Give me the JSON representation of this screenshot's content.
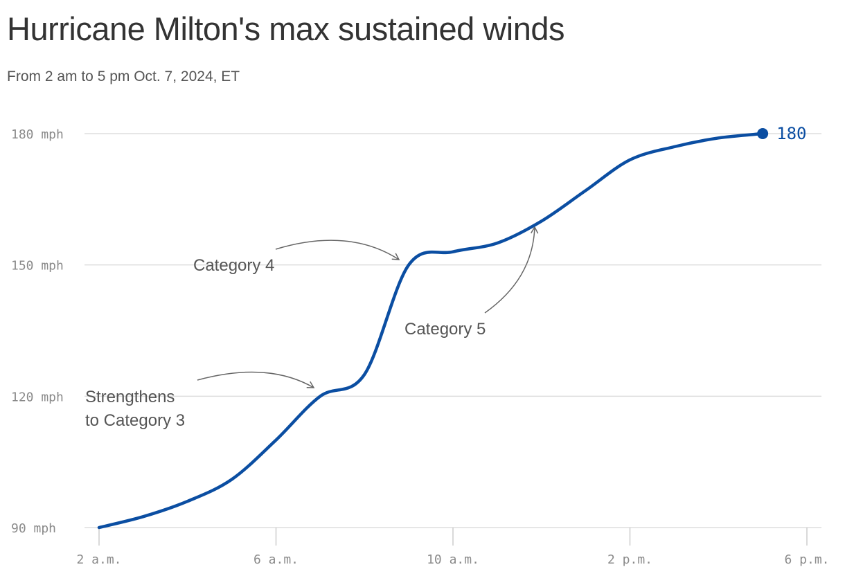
{
  "title": "Hurricane Milton's max sustained winds",
  "subtitle": "From 2 am to 5 pm Oct. 7, 2024, ET",
  "colors": {
    "line": "#0b4ea2",
    "grid": "#dddddd",
    "annotation": "#555555",
    "arrow": "#666666"
  },
  "chart_data": {
    "type": "line",
    "title": "Hurricane Milton's max sustained winds",
    "subtitle": "From 2 am to 5 pm Oct. 7, 2024, ET",
    "xlabel": "",
    "ylabel": "",
    "x_unit": "hour of day (ET)",
    "xlim": [
      2,
      18
    ],
    "ylim": [
      90,
      180
    ],
    "grid": true,
    "x_ticks": [
      {
        "value": 2,
        "label": "2 a.m."
      },
      {
        "value": 6,
        "label": "6 a.m."
      },
      {
        "value": 10,
        "label": "10 a.m."
      },
      {
        "value": 14,
        "label": "2 p.m."
      },
      {
        "value": 18,
        "label": "6 p.m."
      }
    ],
    "y_ticks": [
      {
        "value": 90,
        "label": "90 mph"
      },
      {
        "value": 120,
        "label": "120 mph"
      },
      {
        "value": 150,
        "label": "150 mph"
      },
      {
        "value": 180,
        "label": "180 mph"
      }
    ],
    "series": [
      {
        "x": [
          2,
          3,
          4,
          5,
          6,
          7,
          8,
          9,
          10,
          11,
          12,
          13,
          14,
          15,
          16,
          17
        ],
        "values": [
          90,
          92.5,
          96,
          101,
          110,
          120,
          125,
          150,
          153,
          155,
          160,
          167,
          174,
          177,
          179,
          180
        ]
      }
    ],
    "end_label": "180",
    "annotations": [
      {
        "text": "Strengthens",
        "text2": "to Category 3",
        "x": 7,
        "y": 120
      },
      {
        "text": "Category 4",
        "x": 9,
        "y": 150
      },
      {
        "text": "Category 5",
        "x": 12,
        "y": 160
      }
    ]
  }
}
